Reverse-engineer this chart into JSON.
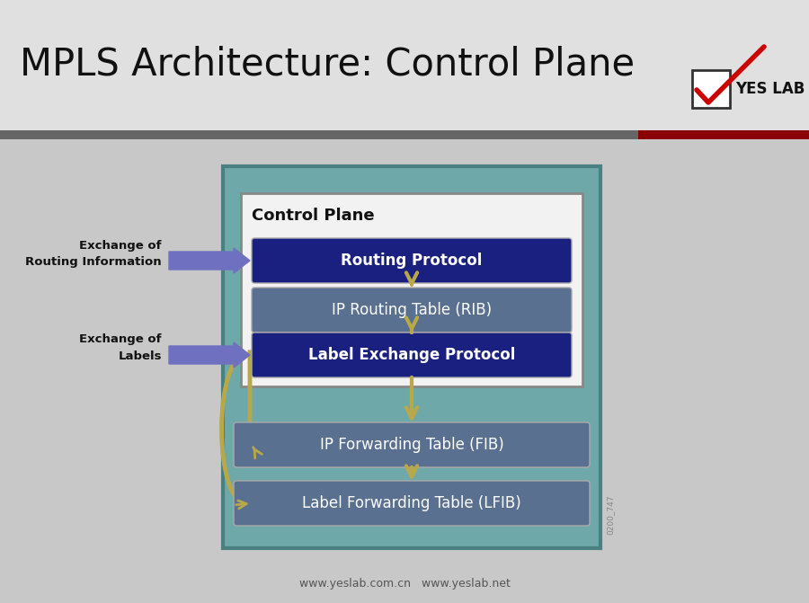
{
  "title": "MPLS Architecture: Control Plane",
  "bg_color": "#c8c8c8",
  "header_bg": "#e0e0e0",
  "title_color": "#111111",
  "title_fontsize": 30,
  "gray_bar_color": "#666666",
  "dark_red_color": "#8b0000",
  "outer_fill": "#6fa8a8",
  "outer_edge": "#4a8080",
  "inner_fill": "#f0f0f0",
  "inner_edge": "#999999",
  "dark_blue_fill": "#1a2080",
  "steel_blue_fill": "#5a7090",
  "arrow_gold": "#b8a84a",
  "purple_fill": "#7070c0",
  "footer_text": "www.yeslab.com.cn   www.yeslab.net",
  "watermark": "0200_747",
  "yes_lab_text": "YES LAB",
  "control_plane_label": "Control Plane"
}
